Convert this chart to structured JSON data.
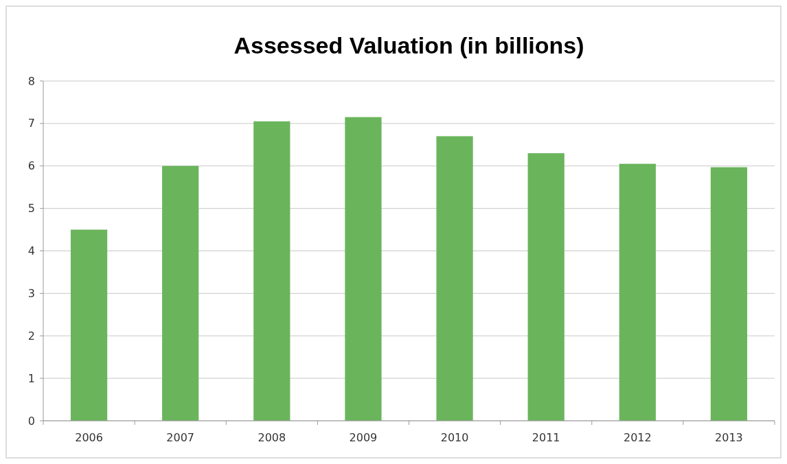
{
  "chart_data": {
    "type": "bar",
    "title": "Assessed Valuation (in billions)",
    "categories": [
      "2006",
      "2007",
      "2008",
      "2009",
      "2010",
      "2011",
      "2012",
      "2013"
    ],
    "values": [
      4.5,
      6.0,
      7.05,
      7.15,
      6.7,
      6.3,
      6.05,
      5.97
    ],
    "color": "#6ab55c",
    "ylim": [
      0,
      8
    ],
    "yticks": [
      0,
      1,
      2,
      3,
      4,
      5,
      6,
      7,
      8
    ],
    "grid": "y"
  }
}
